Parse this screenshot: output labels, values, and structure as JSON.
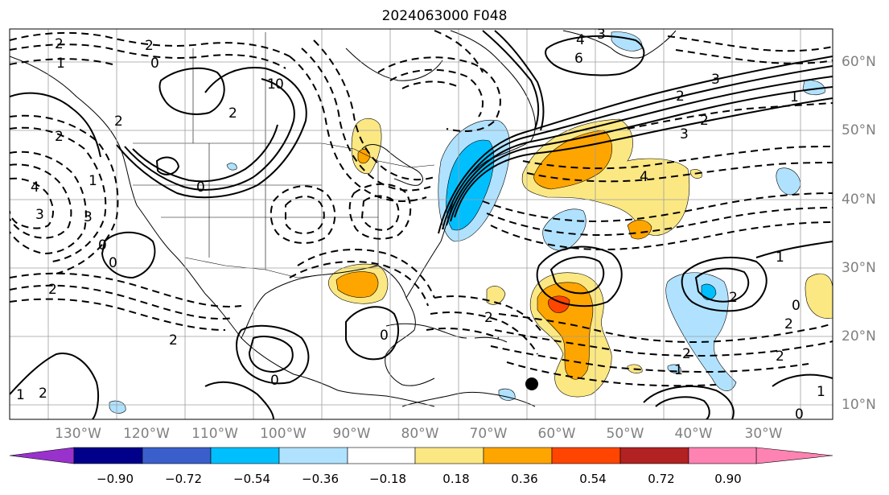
{
  "title": "2024063000 F048",
  "latitude_labels": [
    "60°N",
    "50°N",
    "40°N",
    "30°N",
    "20°N",
    "10°N"
  ],
  "longitude_labels": [
    "130°W",
    "120°W",
    "110°W",
    "100°W",
    "90°W",
    "80°W",
    "70°W",
    "60°W",
    "50°W",
    "40°W",
    "30°W"
  ],
  "colorbar": {
    "tick_labels": [
      "−0.90",
      "−0.72",
      "−0.54",
      "−0.36",
      "−0.18",
      "0.18",
      "0.36",
      "0.54",
      "0.72",
      "0.90"
    ],
    "colors": [
      "#9932cc",
      "#00008b",
      "#3a5fcd",
      "#00bfff",
      "#b0e2ff",
      "#ffffff",
      "#fce883",
      "#ffa500",
      "#ff4500",
      "#b22222",
      "#ff83b2"
    ]
  },
  "contour_labels": [
    "2",
    "1",
    "0",
    "2",
    "1",
    "0",
    "2",
    "0",
    "2",
    "2",
    "3",
    "4",
    "3",
    "4",
    "4",
    "6",
    "3",
    "2",
    "1",
    "3",
    "2",
    "2",
    "1",
    "0",
    "2",
    "1",
    "2",
    "1",
    "2",
    "0",
    "0",
    "2",
    "0",
    "2",
    "1",
    "2",
    "0",
    "2",
    "3",
    "1",
    "0"
  ],
  "shading_colors": {
    "negative_light": "#b0e2ff",
    "negative": "#00bfff",
    "positive_light": "#fce883",
    "positive": "#ffa500",
    "positive_strong": "#ff4500"
  }
}
